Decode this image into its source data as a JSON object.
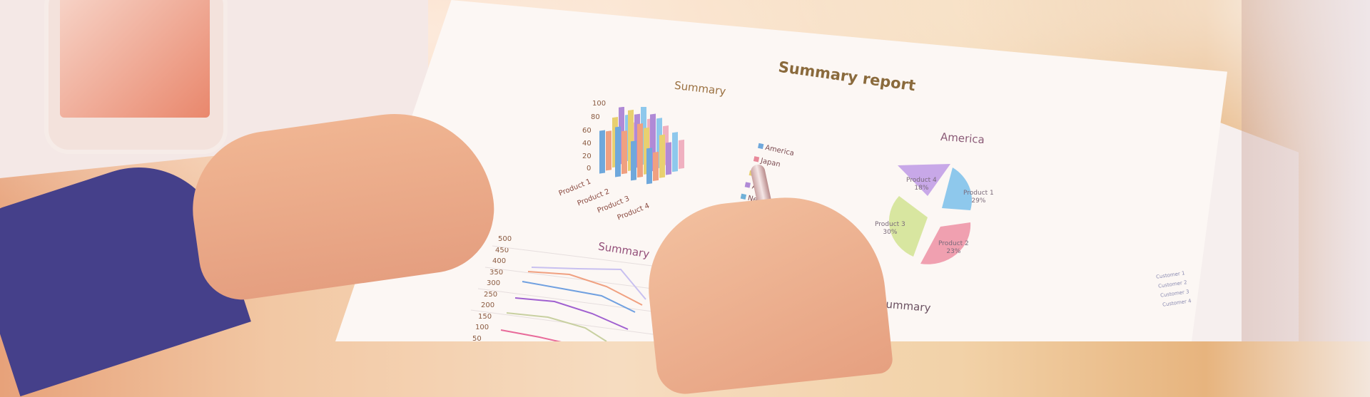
{
  "report": {
    "title": "Summary report"
  },
  "bar_chart": {
    "title": "Summary",
    "y_ticks": [
      "100",
      "80",
      "60",
      "40",
      "20",
      "0"
    ],
    "categories": [
      "Product 1",
      "Product 2",
      "Product 3",
      "Product 4"
    ],
    "legend": [
      {
        "label": "America",
        "color": "#6fa8dc"
      },
      {
        "label": "Japan",
        "color": "#e8899a"
      },
      {
        "label": "",
        "color": "#e8d070"
      },
      {
        "label": "A",
        "color": "#b08ad6"
      },
      {
        "label": "Ne",
        "color": "#6fb0d8"
      },
      {
        "label": "Aust",
        "color": "#f0b080"
      },
      {
        "label": "",
        "color": "#c8b8e0"
      }
    ]
  },
  "pie_chart": {
    "title": "America",
    "slices": [
      {
        "label": "Product 1",
        "value": "29%",
        "color": "#8ec8ec"
      },
      {
        "label": "Product 2",
        "value": "23%",
        "color": "#f0a0b0"
      },
      {
        "label": "Product 3",
        "value": "30%",
        "color": "#d8e6a0"
      },
      {
        "label": "Product 4",
        "value": "18%",
        "color": "#c8a8e8"
      }
    ]
  },
  "line_chart": {
    "title": "Summary",
    "y_ticks": [
      "500",
      "450",
      "400",
      "350",
      "300",
      "250",
      "200",
      "150",
      "100",
      "50"
    ]
  },
  "bottom_title": "Summary",
  "side_legend": [
    "Customer 1",
    "Customer 2",
    "Customer 3",
    "Customer 4"
  ]
}
